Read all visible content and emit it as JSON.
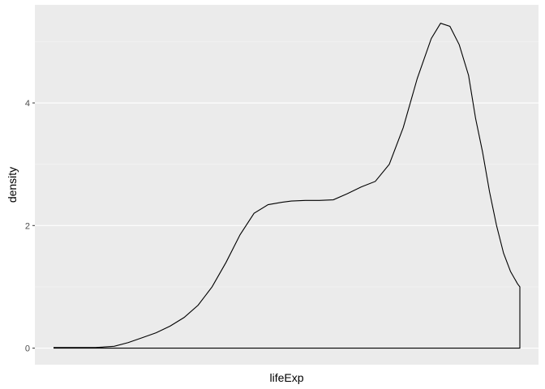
{
  "chart_data": {
    "type": "area",
    "xlabel": "lifeExp",
    "ylabel": "density",
    "ylim": [
      -0.27,
      5.6
    ],
    "xlim": [
      -0.4,
      10.4
    ],
    "y_ticks": [
      0,
      2,
      4
    ],
    "y_tick_labels": [
      "0",
      "2",
      "4"
    ],
    "x_tick_labels": [],
    "grid": true,
    "legend": "none",
    "colors": {
      "panel_background": "#ebebeb",
      "grid_major": "#ffffff",
      "grid_minor": "#f5f5f5",
      "line": "#000000",
      "fill": "none"
    },
    "series": [
      {
        "x": [
          0.0,
          0.9,
          1.3,
          1.6,
          1.9,
          2.2,
          2.5,
          2.8,
          3.1,
          3.4,
          3.7,
          4.0,
          4.3,
          4.6,
          4.9,
          5.1,
          5.4,
          5.7,
          6.0,
          6.3,
          6.6,
          6.9,
          7.2,
          7.5,
          7.8,
          8.1,
          8.3,
          8.5,
          8.7,
          8.9,
          9.05,
          9.2,
          9.35,
          9.5,
          9.65,
          9.8,
          9.95,
          10.0
        ],
        "y": [
          0.01,
          0.01,
          0.03,
          0.09,
          0.17,
          0.25,
          0.36,
          0.5,
          0.7,
          1.0,
          1.4,
          1.85,
          2.2,
          2.34,
          2.38,
          2.4,
          2.41,
          2.41,
          2.42,
          2.52,
          2.63,
          2.72,
          3.0,
          3.6,
          4.4,
          5.05,
          5.3,
          5.25,
          4.95,
          4.45,
          3.75,
          3.2,
          2.55,
          2.0,
          1.55,
          1.25,
          1.05,
          1.0
        ]
      }
    ]
  }
}
